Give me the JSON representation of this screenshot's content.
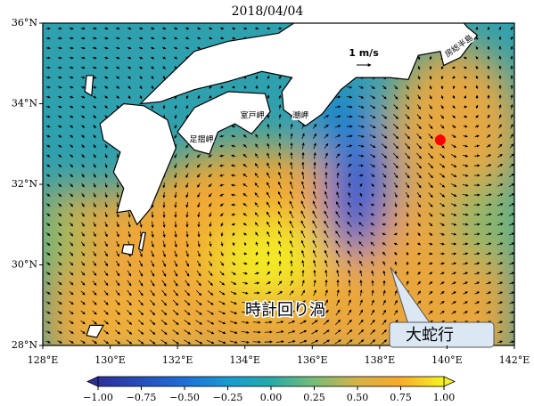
{
  "title": "2018/04/04",
  "map": {
    "xlim": [
      128,
      142
    ],
    "ylim": [
      28,
      36
    ],
    "xticks": [
      {
        "value": 128,
        "label": "128°E"
      },
      {
        "value": 130,
        "label": "130°E"
      },
      {
        "value": 132,
        "label": "132°E"
      },
      {
        "value": 134,
        "label": "134°E"
      },
      {
        "value": 136,
        "label": "136°E"
      },
      {
        "value": 138,
        "label": "138°E"
      },
      {
        "value": 140,
        "label": "140°E"
      },
      {
        "value": 142,
        "label": "142°E"
      }
    ],
    "yticks": [
      {
        "value": 28,
        "label": "28°N"
      },
      {
        "value": 30,
        "label": "30°N"
      },
      {
        "value": 32,
        "label": "32°N"
      },
      {
        "value": 34,
        "label": "34°N"
      },
      {
        "value": 36,
        "label": "36°N"
      }
    ],
    "marker": {
      "lon": 139.8,
      "lat": 33.1,
      "color": "#ff0000"
    }
  },
  "colorbar": {
    "lim": [
      -1,
      1
    ],
    "ticks": [
      {
        "value": -1,
        "label": "−1.00"
      },
      {
        "value": -0.75,
        "label": "−0.75"
      },
      {
        "value": -0.5,
        "label": "−0.50"
      },
      {
        "value": -0.25,
        "label": "−0.25"
      },
      {
        "value": 0,
        "label": "0.00"
      },
      0.25,
      {
        "value": 0.5,
        "label": "0.50"
      },
      {
        "value": 0.75,
        "label": "0.75"
      },
      {
        "value": 1,
        "label": "1.00"
      }
    ]
  },
  "annotations": {
    "eddy": "時計回り渦",
    "meander": "大蛇行",
    "scale": "1 m/s",
    "ashizuri": "足摺岬",
    "muroto": "室戸岬",
    "shiono": "潮岬",
    "boso": "房総半島"
  }
}
